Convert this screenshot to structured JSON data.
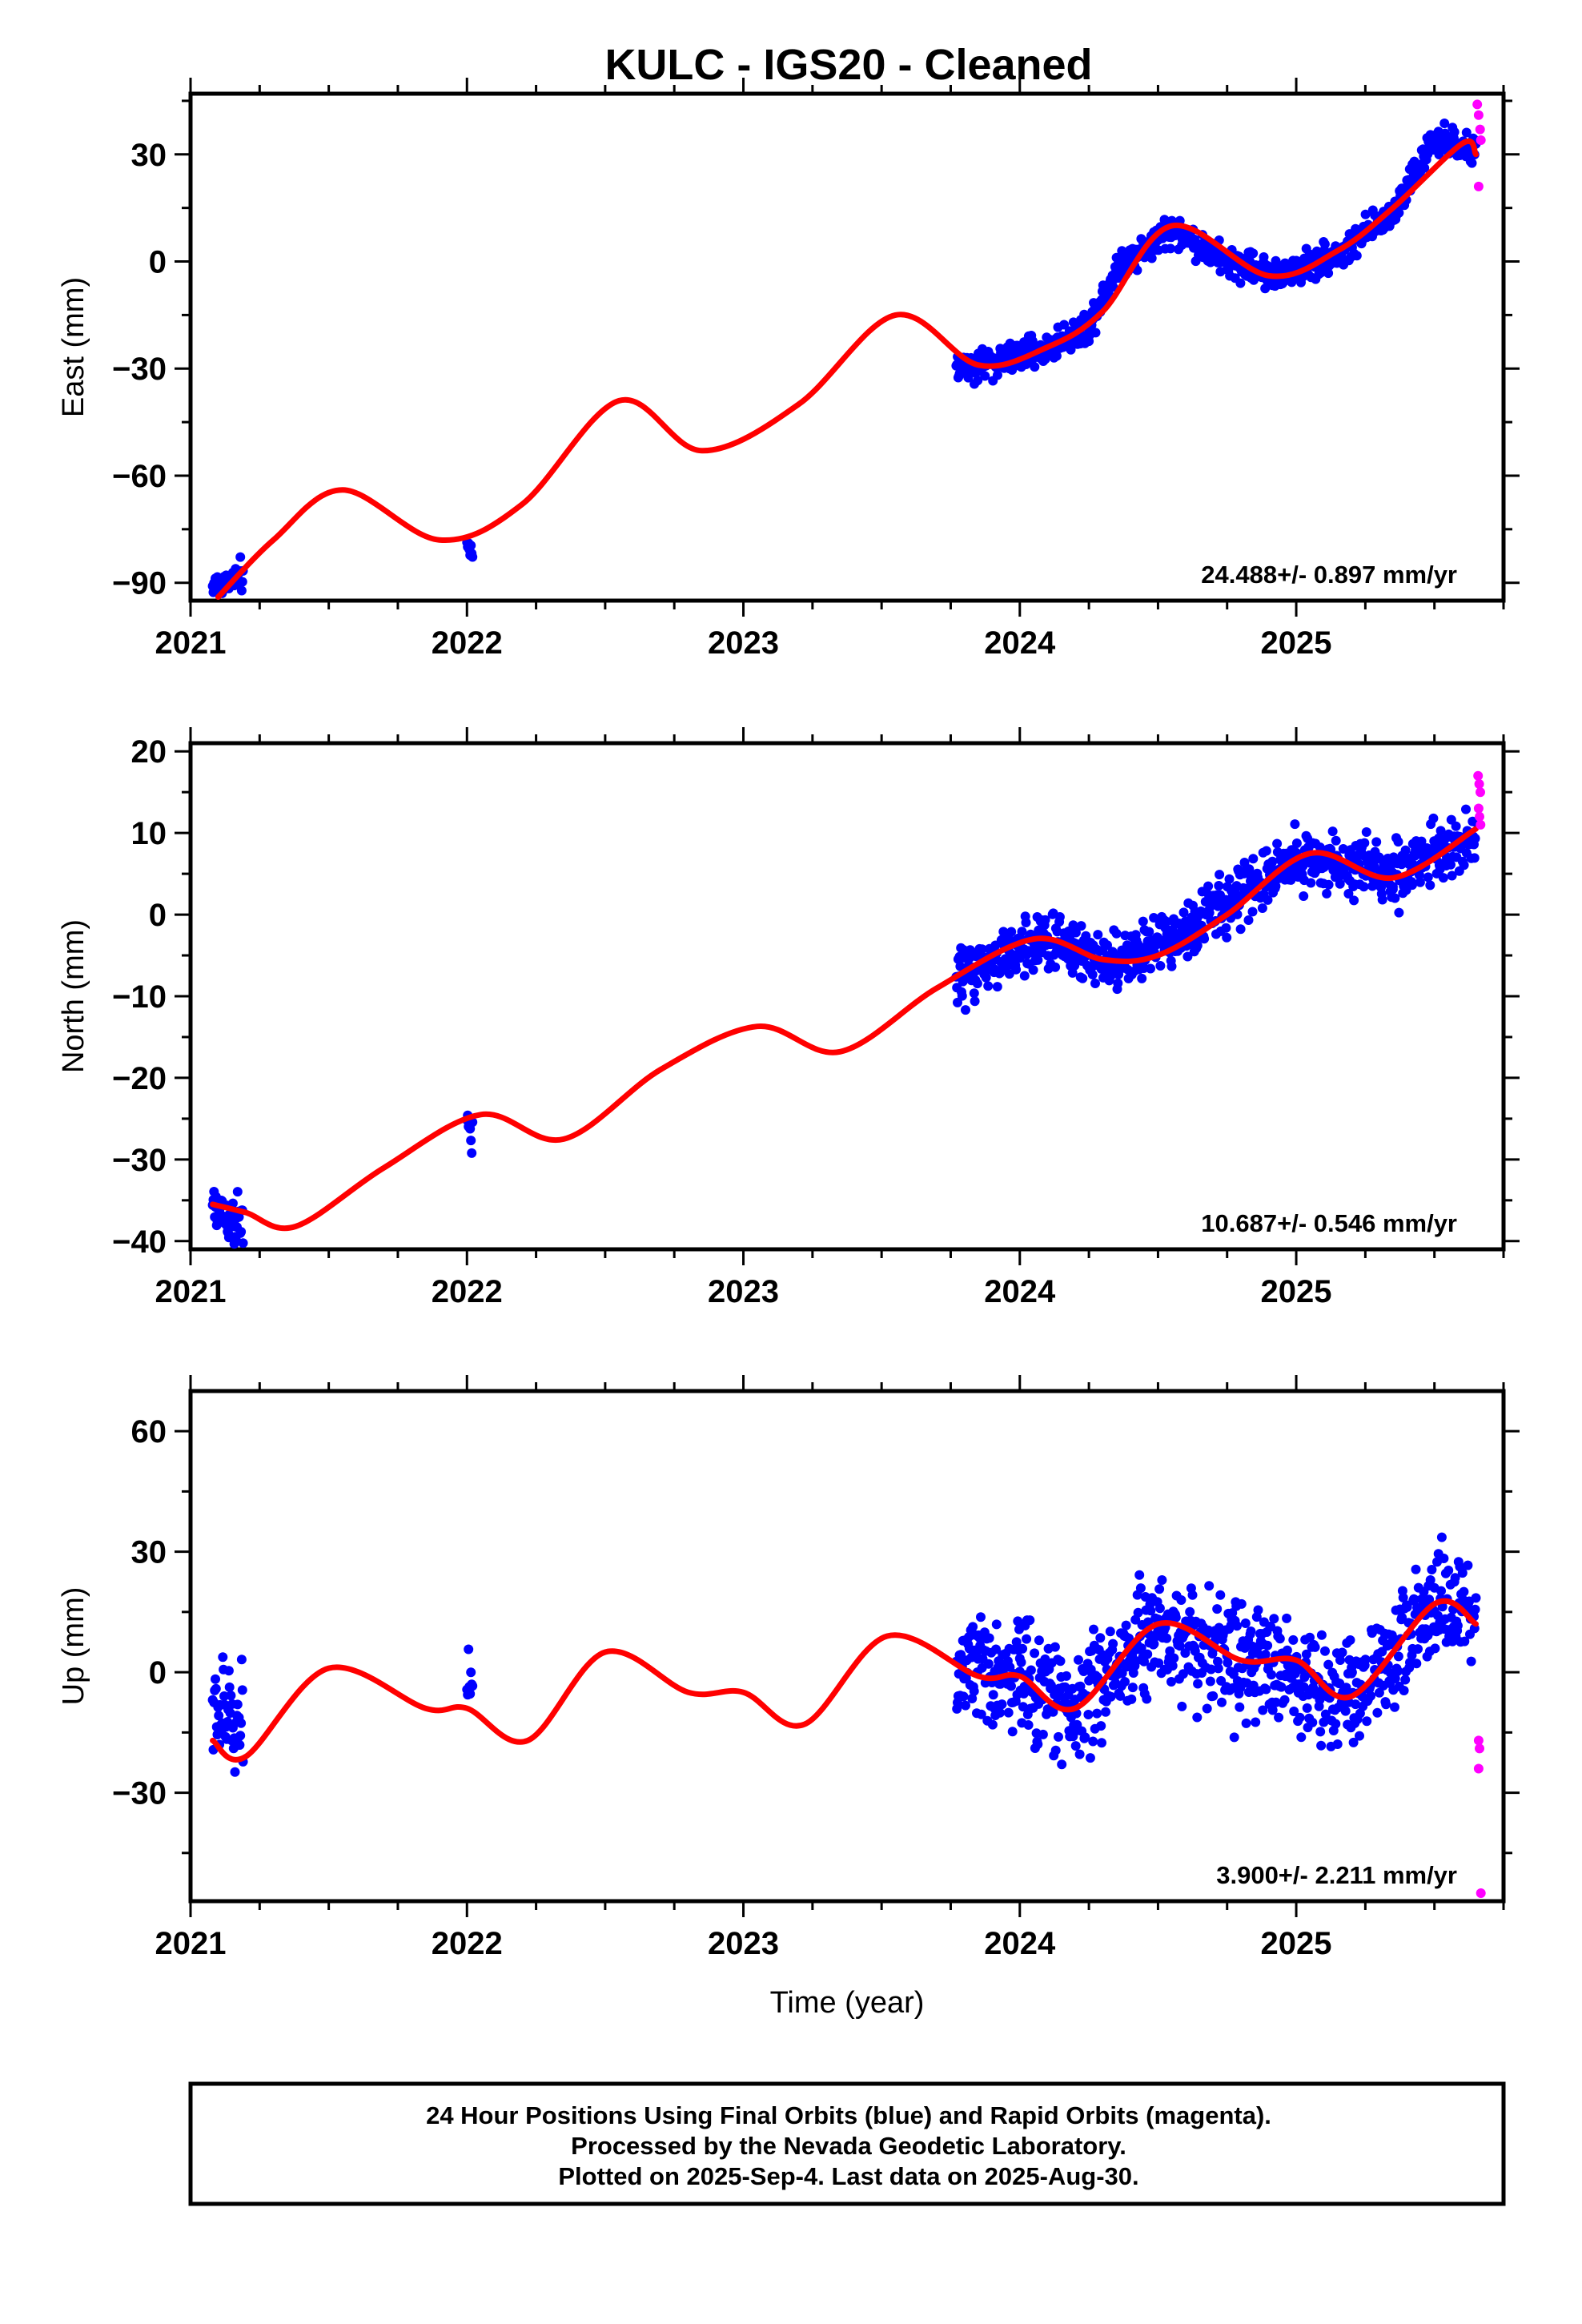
{
  "figure": {
    "title": "KULC  - IGS20 - Cleaned",
    "footer": [
      "24 Hour Positions Using Final Orbits (blue) and Rapid Orbits (magenta).",
      "Processed by the Nevada Geodetic Laboratory.",
      "Plotted on 2025-Sep-4. Last data on 2025-Aug-30."
    ]
  },
  "colors": {
    "final": "#0000ff",
    "rapid": "#ff00ff",
    "fit": "#ff0000",
    "axis": "#000000"
  },
  "chart_data": [
    {
      "type": "scatter",
      "name": "east",
      "ylabel": "East (mm)",
      "xlabel": "",
      "xlim": [
        2021.0,
        2025.75
      ],
      "ylim": [
        -95,
        47
      ],
      "yticks": [
        -90,
        -60,
        -30,
        0,
        30
      ],
      "xticks": [
        2021,
        2022,
        2023,
        2024,
        2025
      ],
      "rate_label": "24.488+/- 0.897 mm/yr",
      "final_segments": [
        {
          "t": [
            2021.08,
            2021.19
          ],
          "y": [
            -91,
            -88
          ]
        },
        {
          "t": [
            2022.0,
            2022.02
          ],
          "y": [
            -82,
            -81
          ]
        },
        {
          "t": [
            2023.77,
            2023.85
          ],
          "y": [
            -29,
            -29
          ]
        },
        {
          "t": [
            2023.85,
            2024.08
          ],
          "y": [
            -29,
            -25
          ]
        },
        {
          "t": [
            2024.08,
            2024.25
          ],
          "y": [
            -25,
            -18
          ]
        },
        {
          "t": [
            2024.25,
            2024.35
          ],
          "y": [
            -18,
            -2
          ]
        },
        {
          "t": [
            2024.35,
            2024.55
          ],
          "y": [
            -2,
            9
          ]
        },
        {
          "t": [
            2024.55,
            2024.75
          ],
          "y": [
            9,
            0
          ]
        },
        {
          "t": [
            2024.75,
            2024.95
          ],
          "y": [
            0,
            -4
          ]
        },
        {
          "t": [
            2024.95,
            2025.2
          ],
          "y": [
            -4,
            4
          ]
        },
        {
          "t": [
            2025.2,
            2025.35
          ],
          "y": [
            4,
            14
          ]
        },
        {
          "t": [
            2025.35,
            2025.5
          ],
          "y": [
            14,
            34
          ]
        },
        {
          "t": [
            2025.5,
            2025.65
          ],
          "y": [
            34,
            31
          ]
        }
      ],
      "final_scatter_mm": 3.0,
      "rapid_points": [
        {
          "t": 2025.655,
          "y": 44
        },
        {
          "t": 2025.66,
          "y": 41
        },
        {
          "t": 2025.665,
          "y": 37
        },
        {
          "t": 2025.668,
          "y": 34
        },
        {
          "t": 2025.66,
          "y": 21
        }
      ],
      "fit": {
        "t": [
          2021.1,
          2021.3,
          2021.55,
          2021.9,
          2022.2,
          2022.55,
          2022.85,
          2023.2,
          2023.55,
          2023.85,
          2024.1,
          2024.3,
          2024.55,
          2024.9,
          2025.15,
          2025.35,
          2025.6,
          2025.65
        ],
        "y": [
          -94,
          -78,
          -64,
          -78,
          -68,
          -39,
          -53,
          -40,
          -15,
          -29,
          -24,
          -14,
          10,
          -4,
          3,
          15,
          33,
          30
        ]
      }
    },
    {
      "type": "scatter",
      "name": "north",
      "ylabel": "North (mm)",
      "xlabel": "",
      "xlim": [
        2021.0,
        2025.75
      ],
      "ylim": [
        -41,
        21
      ],
      "yticks": [
        -40,
        -30,
        -20,
        -10,
        0,
        10,
        20
      ],
      "xticks": [
        2021,
        2022,
        2023,
        2024,
        2025
      ],
      "rate_label": "10.687+/- 0.546 mm/yr",
      "final_segments": [
        {
          "t": [
            2021.08,
            2021.19
          ],
          "y": [
            -36,
            -38
          ]
        },
        {
          "t": [
            2022.0,
            2022.02
          ],
          "y": [
            -26,
            -27
          ]
        },
        {
          "t": [
            2023.77,
            2024.08
          ],
          "y": [
            -8,
            -3
          ]
        },
        {
          "t": [
            2024.08,
            2024.35
          ],
          "y": [
            -3,
            -6
          ]
        },
        {
          "t": [
            2024.35,
            2024.6
          ],
          "y": [
            -6,
            -2
          ]
        },
        {
          "t": [
            2024.6,
            2025.0
          ],
          "y": [
            -2,
            7
          ]
        },
        {
          "t": [
            2025.0,
            2025.35
          ],
          "y": [
            7,
            5
          ]
        },
        {
          "t": [
            2025.35,
            2025.65
          ],
          "y": [
            5,
            10
          ]
        }
      ],
      "final_scatter_mm": 2.5,
      "rapid_points": [
        {
          "t": 2025.658,
          "y": 17
        },
        {
          "t": 2025.662,
          "y": 16
        },
        {
          "t": 2025.666,
          "y": 15
        },
        {
          "t": 2025.66,
          "y": 13
        },
        {
          "t": 2025.663,
          "y": 12
        },
        {
          "t": 2025.667,
          "y": 11
        }
      ],
      "fit": {
        "t": [
          2021.08,
          2021.2,
          2021.38,
          2021.7,
          2022.05,
          2022.35,
          2022.7,
          2023.05,
          2023.35,
          2023.7,
          2024.05,
          2024.3,
          2024.5,
          2024.75,
          2025.05,
          2025.35,
          2025.65
        ],
        "y": [
          -35.5,
          -36.5,
          -38.2,
          -31,
          -24.5,
          -27.5,
          -19,
          -13.7,
          -16.8,
          -9,
          -3,
          -5.5,
          -5,
          0,
          7.5,
          4.5,
          10.5
        ]
      }
    },
    {
      "type": "scatter",
      "name": "up",
      "ylabel": "Up (mm)",
      "xlabel": "Time (year)",
      "xlim": [
        2021.0,
        2025.75
      ],
      "ylim": [
        -57,
        70
      ],
      "yticks": [
        -30,
        0,
        30,
        60
      ],
      "xticks": [
        2021,
        2022,
        2023,
        2024,
        2025
      ],
      "rate_label": "3.900+/- 2.211 mm/yr",
      "final_segments": [
        {
          "t": [
            2021.08,
            2021.19
          ],
          "y": [
            -10,
            -12
          ]
        },
        {
          "t": [
            2022.0,
            2022.02
          ],
          "y": [
            0,
            2
          ]
        },
        {
          "t": [
            2023.77,
            2024.0
          ],
          "y": [
            -1,
            -1
          ]
        },
        {
          "t": [
            2024.0,
            2024.2
          ],
          "y": [
            -1,
            -9
          ]
        },
        {
          "t": [
            2024.2,
            2024.5
          ],
          "y": [
            -9,
            12
          ]
        },
        {
          "t": [
            2024.5,
            2024.8
          ],
          "y": [
            12,
            3
          ]
        },
        {
          "t": [
            2024.8,
            2025.2
          ],
          "y": [
            3,
            -6
          ]
        },
        {
          "t": [
            2025.2,
            2025.5
          ],
          "y": [
            -6,
            17
          ]
        },
        {
          "t": [
            2025.5,
            2025.65
          ],
          "y": [
            17,
            12
          ]
        }
      ],
      "final_scatter_mm": 10,
      "rapid_points": [
        {
          "t": 2025.66,
          "y": -17
        },
        {
          "t": 2025.663,
          "y": -19
        },
        {
          "t": 2025.66,
          "y": -24
        },
        {
          "t": 2025.668,
          "y": -55
        }
      ],
      "fit": {
        "t": [
          2021.08,
          2021.2,
          2021.5,
          2021.85,
          2022.0,
          2022.22,
          2022.5,
          2022.8,
          2023.0,
          2023.22,
          2023.52,
          2023.85,
          2024.0,
          2024.2,
          2024.5,
          2024.8,
          2025.0,
          2025.2,
          2025.5,
          2025.65
        ],
        "y": [
          -17,
          -21,
          1,
          -9,
          -9,
          -17,
          5,
          -5,
          -5,
          -13,
          9,
          -1,
          -1,
          -9,
          12,
          3,
          3,
          -6,
          17,
          12
        ]
      }
    }
  ]
}
